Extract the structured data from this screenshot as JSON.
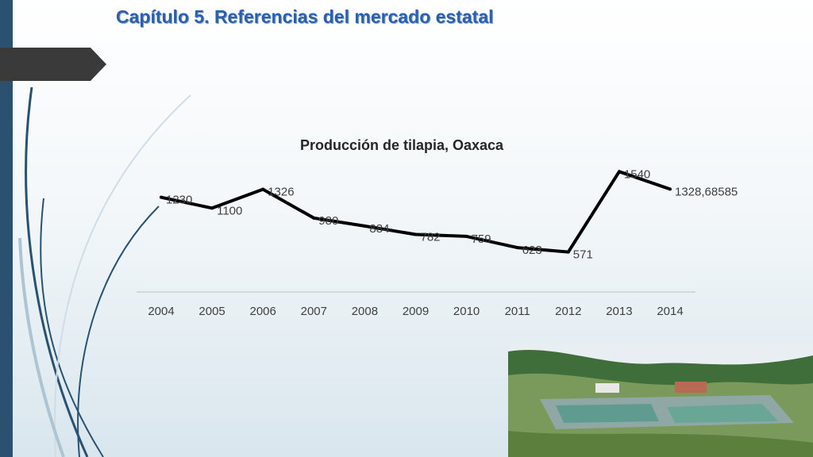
{
  "slide": {
    "title": "Capítulo 5.  Referencias del mercado estatal"
  },
  "colors": {
    "title": "#2b5fb0",
    "accent_bar": "#2a5270",
    "line": "#000000"
  },
  "chart_data": {
    "type": "line",
    "title": "Producción de tilapia, Oaxaca",
    "categories": [
      "2004",
      "2005",
      "2006",
      "2007",
      "2008",
      "2009",
      "2010",
      "2011",
      "2012",
      "2013",
      "2014"
    ],
    "series": [
      {
        "values": [
          1230,
          1100,
          1326,
          980,
          884,
          782,
          759,
          623,
          571,
          1540,
          1328.68585
        ],
        "labels": [
          "1230",
          "1100",
          "1326",
          "980",
          "884",
          "782",
          "759",
          "623",
          "571",
          "1540",
          "1328,68585"
        ]
      }
    ],
    "grid": false,
    "legend": "none"
  }
}
